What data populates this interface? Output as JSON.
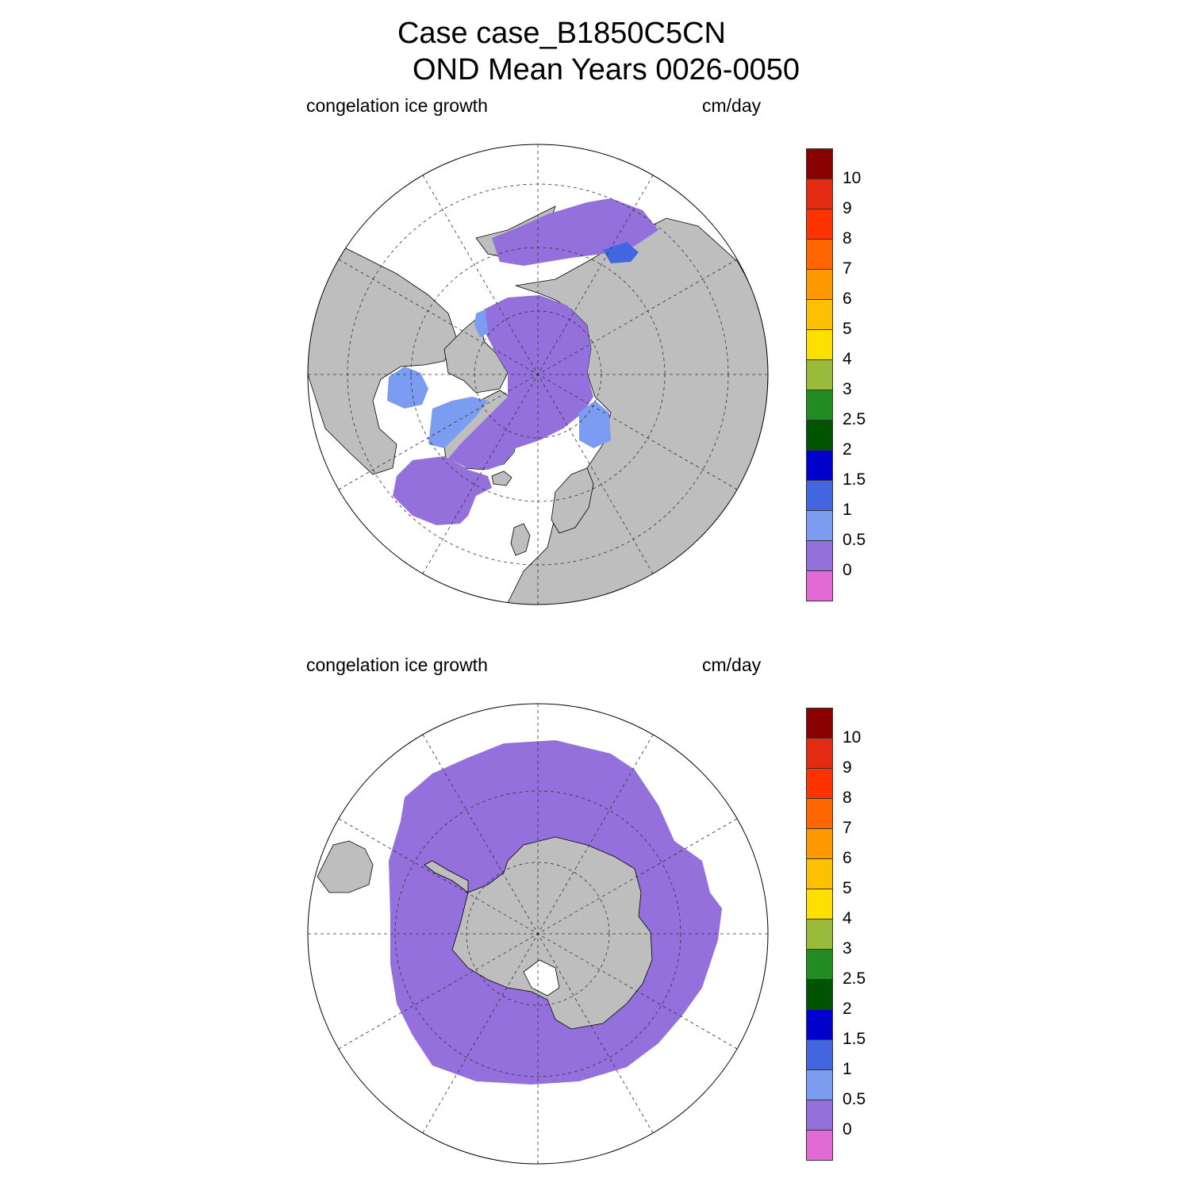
{
  "title_line1": "Case case_B1850C5CN",
  "title_line2": "OND Mean   Years 0026-0050",
  "panels": [
    {
      "hemisphere": "north",
      "variable_label": "congelation ice growth",
      "units_label": "cm/day"
    },
    {
      "hemisphere": "south",
      "variable_label": "congelation ice growth",
      "units_label": "cm/day"
    }
  ],
  "colorbar": {
    "labels": [
      "0",
      "0.5",
      "1",
      "1.5",
      "2",
      "2.5",
      "3",
      "4",
      "5",
      "6",
      "7",
      "8",
      "9",
      "10"
    ],
    "colors": [
      "#e16ad6",
      "#9370db",
      "#7b9cf0",
      "#4166e0",
      "#0000cd",
      "#005400",
      "#228b22",
      "#9aba3a",
      "#fde000",
      "#fec000",
      "#ff9900",
      "#ff6600",
      "#ff3300",
      "#e22b10",
      "#8b0000"
    ]
  },
  "colors": {
    "land": "#bebebe",
    "ice_0_to_0.5": "#9370db",
    "ice_0.5_to_1": "#7b9cf0",
    "ice_1_to_1.5": "#4166e0"
  }
}
